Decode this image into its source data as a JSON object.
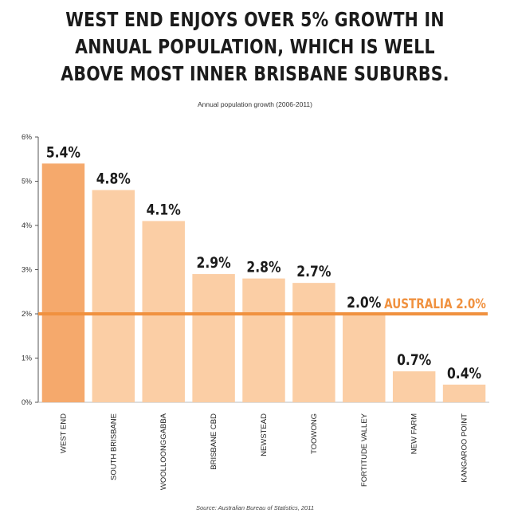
{
  "title": "WEST END ENJOYS OVER 5% GROWTH IN ANNUAL POPULATION, WHICH IS WELL ABOVE MOST INNER BRISBANE SUBURBS.",
  "source": "Source: Australian Bureau of Statistics, 2011",
  "chart_data": {
    "type": "bar",
    "title": "Annual population growth (2006-2011)",
    "categories": [
      "WEST END",
      "SOUTH BRISBANE",
      "WOOLLOONGGABBA",
      "BRISBANE CBD",
      "NEWSTEAD",
      "TOOWONG",
      "FORTITUDE VALLEY",
      "NEW FARM",
      "KANGAROO POINT"
    ],
    "values": [
      5.4,
      4.8,
      4.1,
      2.9,
      2.8,
      2.7,
      2.0,
      0.7,
      0.4
    ],
    "value_labels": [
      "5.4%",
      "4.8%",
      "4.1%",
      "2.9%",
      "2.8%",
      "2.7%",
      "2.0%",
      "0.7%",
      "0.4%"
    ],
    "ylim": [
      0,
      6
    ],
    "yticks": [
      0,
      1,
      2,
      3,
      4,
      5,
      6
    ],
    "ytick_labels": [
      "0%",
      "1%",
      "2%",
      "3%",
      "4%",
      "5%",
      "6%"
    ],
    "reference_line": {
      "value": 2.0,
      "label": "AUSTRALIA 2.0%"
    },
    "grid": false,
    "colors": {
      "highlight_bar": "#f5a96c",
      "bar": "#fbcea5",
      "reference_line": "#f0913f",
      "value_label": "#1b1b1b",
      "axis": "#555555"
    }
  }
}
